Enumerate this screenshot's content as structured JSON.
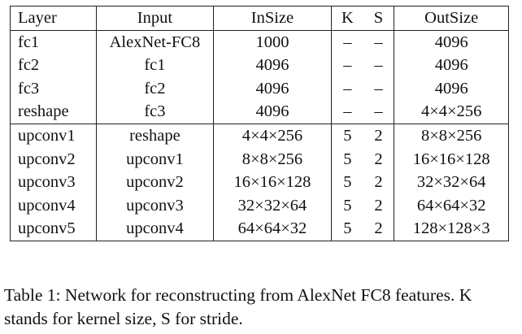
{
  "table": {
    "headers": [
      "Layer",
      "Input",
      "InSize",
      "K",
      "S",
      "OutSize"
    ],
    "groups": [
      [
        [
          "fc1",
          "AlexNet-FC8",
          "1000",
          "–",
          "–",
          "4096"
        ],
        [
          "fc2",
          "fc1",
          "4096",
          "–",
          "–",
          "4096"
        ],
        [
          "fc3",
          "fc2",
          "4096",
          "–",
          "–",
          "4096"
        ],
        [
          "reshape",
          "fc3",
          "4096",
          "–",
          "–",
          "4×4×256"
        ]
      ],
      [
        [
          "upconv1",
          "reshape",
          "4×4×256",
          "5",
          "2",
          "8×8×256"
        ],
        [
          "upconv2",
          "upconv1",
          "8×8×256",
          "5",
          "2",
          "16×16×128"
        ],
        [
          "upconv3",
          "upconv2",
          "16×16×128",
          "5",
          "2",
          "32×32×64"
        ],
        [
          "upconv4",
          "upconv3",
          "32×32×64",
          "5",
          "2",
          "64×64×32"
        ],
        [
          "upconv5",
          "upconv4",
          "64×64×32",
          "5",
          "2",
          "128×128×3"
        ]
      ]
    ]
  },
  "caption": {
    "label": "Table 1:",
    "text": "Network for reconstructing from AlexNet FC8 features. K stands for kernel size, S for stride."
  }
}
